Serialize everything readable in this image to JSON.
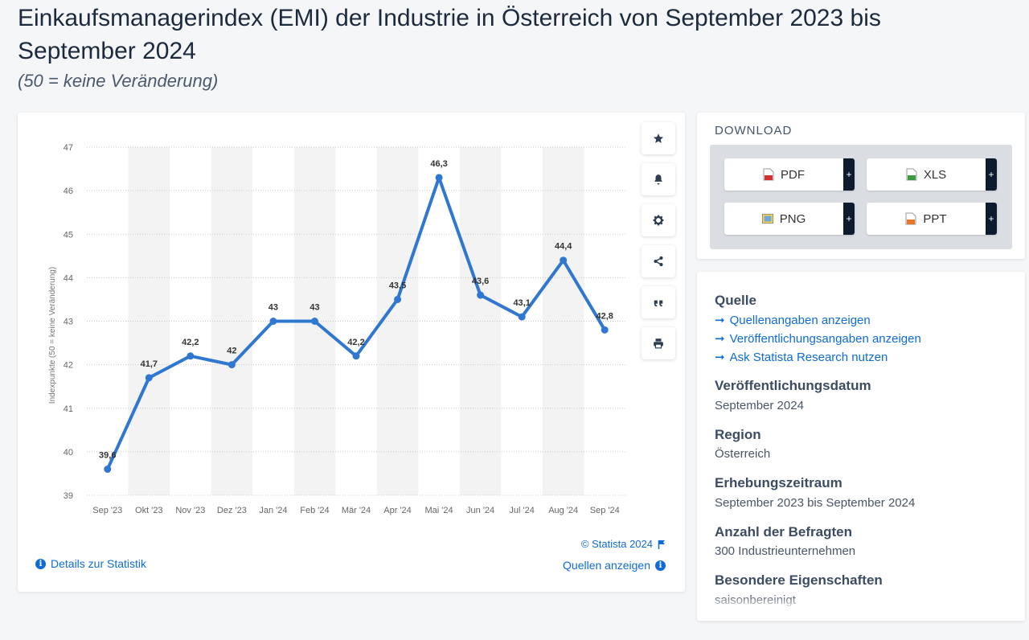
{
  "title": "Einkaufsmanagerindex (EMI) der Industrie in Österreich von September 2023 bis September 2024",
  "subtitle": "(50 = keine Veränderung)",
  "chart_data": {
    "type": "line",
    "title": "Einkaufsmanagerindex (EMI) der Industrie in Österreich von September 2023 bis September 2024",
    "ylabel": "Indexpunkte (50 = keine Veränderung)",
    "xlabel": "",
    "categories": [
      "Sep '23",
      "Okt '23",
      "Nov '23",
      "Dez '23",
      "Jan '24",
      "Feb '24",
      "Mär '24",
      "Apr '24",
      "Mai '24",
      "Jun '24",
      "Jul '24",
      "Aug '24",
      "Sep '24"
    ],
    "series": [
      {
        "values": [
          39.6,
          41.7,
          42.2,
          42,
          43,
          43,
          42.2,
          43.5,
          46.3,
          43.6,
          43.1,
          44.4,
          42.8
        ]
      }
    ],
    "value_labels": [
      "39,6",
      "41,7",
      "42,2",
      "42",
      "43",
      "43",
      "42,2",
      "43,5",
      "46,3",
      "43,6",
      "43,1",
      "44,4",
      "42,8"
    ],
    "ylim": [
      39,
      47
    ],
    "yticks": [
      "39",
      "40",
      "41",
      "42",
      "43",
      "44",
      "45",
      "46",
      "47"
    ],
    "grid": true,
    "color": "#2f77d1"
  },
  "toolbar": {
    "icons": [
      "star-icon",
      "bell-icon",
      "gear-icon",
      "share-icon",
      "quote-icon",
      "print-icon"
    ]
  },
  "footer": {
    "details": "Details zur Statistik",
    "copyright": "© Statista 2024",
    "sources": "Quellen anzeigen"
  },
  "download": {
    "title": "DOWNLOAD",
    "buttons": [
      "PDF",
      "XLS",
      "PNG",
      "PPT"
    ],
    "plus": "+"
  },
  "info": {
    "quelle_title": "Quelle",
    "links": [
      "Quellenangaben anzeigen",
      "Veröffentlichungsangaben anzeigen",
      "Ask Statista Research nutzen"
    ],
    "pub_date_title": "Veröffentlichungsdatum",
    "pub_date": "September 2024",
    "region_title": "Region",
    "region": "Österreich",
    "period_title": "Erhebungszeitraum",
    "period": "September 2023 bis September 2024",
    "respondents_title": "Anzahl der Befragten",
    "respondents": "300 Industrieunternehmen",
    "special_title": "Besondere Eigenschaften",
    "special": "saisonbereinigt"
  }
}
